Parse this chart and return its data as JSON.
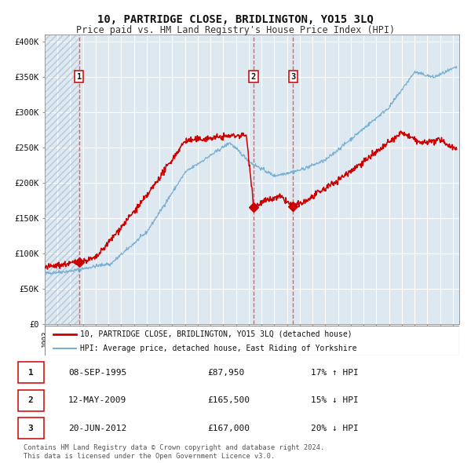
{
  "title": "10, PARTRIDGE CLOSE, BRIDLINGTON, YO15 3LQ",
  "subtitle": "Price paid vs. HM Land Registry's House Price Index (HPI)",
  "title_fontsize": 10,
  "subtitle_fontsize": 8.5,
  "background_color": "#ffffff",
  "plot_bg_color": "#dde8f0",
  "hatch_color": "#b8c8d8",
  "grid_color": "#ffffff",
  "red_line_color": "#cc0000",
  "blue_line_color": "#7ab0d4",
  "marker_color": "#cc0000",
  "vline_color": "#ff5555",
  "yticks": [
    0,
    50000,
    100000,
    150000,
    200000,
    250000,
    300000,
    350000,
    400000
  ],
  "ytick_labels": [
    "£0",
    "£50K",
    "£100K",
    "£150K",
    "£200K",
    "£250K",
    "£300K",
    "£350K",
    "£400K"
  ],
  "xlim_start": 1993.0,
  "xlim_end": 2025.5,
  "ylim_min": 0,
  "ylim_max": 410000,
  "sale_dates": [
    1995.69,
    2009.36,
    2012.47
  ],
  "sale_prices": [
    87950,
    165500,
    167000
  ],
  "sale_labels": [
    "1",
    "2",
    "3"
  ],
  "legend_entries": [
    "10, PARTRIDGE CLOSE, BRIDLINGTON, YO15 3LQ (detached house)",
    "HPI: Average price, detached house, East Riding of Yorkshire"
  ],
  "table_rows": [
    [
      "1",
      "08-SEP-1995",
      "£87,950",
      "17% ↑ HPI"
    ],
    [
      "2",
      "12-MAY-2009",
      "£165,500",
      "15% ↓ HPI"
    ],
    [
      "3",
      "20-JUN-2012",
      "£167,000",
      "20% ↓ HPI"
    ]
  ],
  "footnote": "Contains HM Land Registry data © Crown copyright and database right 2024.\nThis data is licensed under the Open Government Licence v3.0.",
  "hatch_end_year": 1995.69
}
